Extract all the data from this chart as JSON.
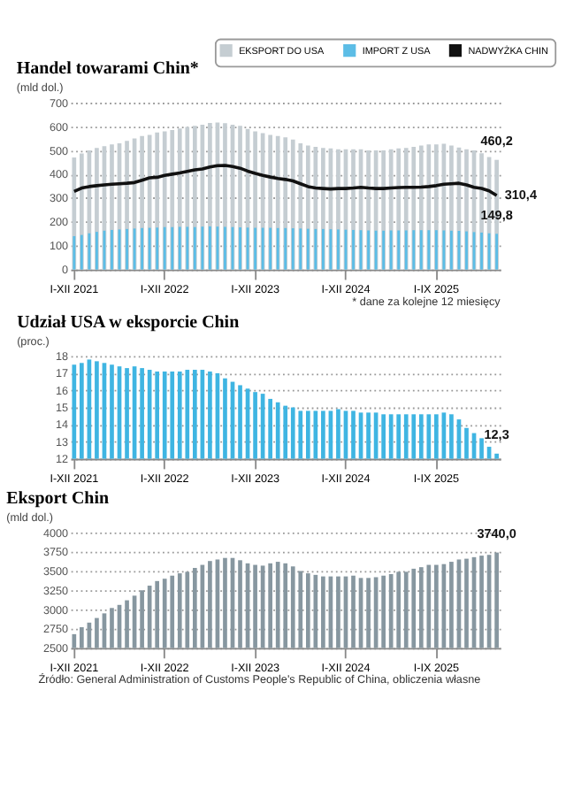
{
  "chart_data": [
    {
      "type": "bar",
      "title": "Handel towarami Chin*",
      "ylabel": "(mld dol.)",
      "legend": "top",
      "grid": "y",
      "categories": [
        "I-XII 2021",
        null,
        null,
        null,
        null,
        null,
        null,
        null,
        null,
        null,
        null,
        null,
        "I-XII 2022",
        null,
        null,
        null,
        null,
        null,
        null,
        null,
        null,
        null,
        null,
        null,
        "I-XII 2023",
        null,
        null,
        null,
        null,
        null,
        null,
        null,
        null,
        null,
        null,
        null,
        "I-XII 2024",
        null,
        null,
        null,
        null,
        null,
        null,
        null,
        null,
        null,
        null,
        null,
        "I-IX 2025",
        null,
        null,
        null,
        null,
        null,
        null,
        null,
        null
      ],
      "ylim": [
        0,
        700
      ],
      "yticks": [
        0,
        100,
        200,
        300,
        400,
        500,
        600,
        700
      ],
      "annotations": [
        "* dane za kolejne 12 miesięcy"
      ],
      "series": [
        {
          "name": "EKSPORT DO USA",
          "color": "#c5cdd2",
          "values": [
            470,
            487,
            500,
            510,
            518,
            525,
            530,
            540,
            550,
            560,
            565,
            575,
            580,
            585,
            592,
            598,
            603,
            608,
            615,
            617,
            614,
            608,
            603,
            590,
            580,
            572,
            565,
            560,
            555,
            545,
            530,
            520,
            515,
            510,
            508,
            505,
            505,
            505,
            505,
            500,
            500,
            500,
            505,
            508,
            510,
            515,
            520,
            525,
            525,
            528,
            520,
            512,
            505,
            500,
            488,
            472,
            460.2
          ],
          "value_labels": [
            null,
            null,
            null,
            null,
            null,
            null,
            null,
            null,
            null,
            null,
            null,
            null,
            null,
            null,
            null,
            null,
            null,
            null,
            null,
            null,
            null,
            null,
            null,
            null,
            null,
            null,
            null,
            null,
            null,
            null,
            null,
            null,
            null,
            null,
            null,
            null,
            null,
            null,
            null,
            null,
            null,
            null,
            null,
            null,
            null,
            null,
            null,
            null,
            null,
            null,
            null,
            null,
            null,
            null,
            null,
            null,
            "460,2"
          ]
        },
        {
          "name": "IMPORT Z USA",
          "color": "#5cbde6",
          "values": [
            140,
            145,
            152,
            158,
            163,
            166,
            168,
            170,
            172,
            174,
            175,
            176,
            178,
            178,
            179,
            179,
            178,
            180,
            181,
            180,
            179,
            178,
            177,
            176,
            175,
            175,
            175,
            174,
            174,
            173,
            172,
            171,
            170,
            170,
            169,
            168,
            167,
            166,
            165,
            164,
            163,
            163,
            164,
            164,
            164,
            165,
            165,
            165,
            165,
            164,
            163,
            162,
            160,
            157,
            155,
            152,
            149.8
          ],
          "value_labels": [
            null,
            null,
            null,
            null,
            null,
            null,
            null,
            null,
            null,
            null,
            null,
            null,
            null,
            null,
            null,
            null,
            null,
            null,
            null,
            null,
            null,
            null,
            null,
            null,
            null,
            null,
            null,
            null,
            null,
            null,
            null,
            null,
            null,
            null,
            null,
            null,
            null,
            null,
            null,
            null,
            null,
            null,
            null,
            null,
            null,
            null,
            null,
            null,
            null,
            null,
            null,
            null,
            null,
            null,
            null,
            null,
            "149,8"
          ]
        },
        {
          "name": "NADWYŻKA CHIN",
          "type": "line",
          "color": "#111111",
          "values": [
            328,
            342,
            348,
            352,
            355,
            358,
            360,
            362,
            365,
            375,
            385,
            387,
            395,
            400,
            405,
            412,
            418,
            422,
            430,
            436,
            437,
            432,
            425,
            413,
            403,
            395,
            388,
            382,
            378,
            372,
            360,
            348,
            342,
            340,
            338,
            340,
            340,
            342,
            345,
            342,
            340,
            340,
            342,
            344,
            345,
            345,
            346,
            348,
            352,
            358,
            360,
            362,
            355,
            345,
            340,
            330,
            310.4
          ],
          "value_labels": [
            null,
            null,
            null,
            null,
            null,
            null,
            null,
            null,
            null,
            null,
            null,
            null,
            null,
            null,
            null,
            null,
            null,
            null,
            null,
            null,
            null,
            null,
            null,
            null,
            null,
            null,
            null,
            null,
            null,
            null,
            null,
            null,
            null,
            null,
            null,
            null,
            null,
            null,
            null,
            null,
            null,
            null,
            null,
            null,
            null,
            null,
            null,
            null,
            null,
            null,
            null,
            null,
            null,
            null,
            null,
            null,
            "310,4"
          ]
        }
      ]
    },
    {
      "type": "bar",
      "title": "Udział USA w eksporcie Chin",
      "ylabel": "(proc.)",
      "grid": "y",
      "categories": [
        "I-XII 2021",
        null,
        null,
        null,
        null,
        null,
        null,
        null,
        null,
        null,
        null,
        null,
        "I-XII 2022",
        null,
        null,
        null,
        null,
        null,
        null,
        null,
        null,
        null,
        null,
        null,
        "I-XII 2023",
        null,
        null,
        null,
        null,
        null,
        null,
        null,
        null,
        null,
        null,
        null,
        "I-XII 2024",
        null,
        null,
        null,
        null,
        null,
        null,
        null,
        null,
        null,
        null,
        null,
        "I-IX 2025",
        null,
        null,
        null,
        null,
        null,
        null,
        null,
        null
      ],
      "ylim": [
        12,
        18
      ],
      "yticks": [
        12,
        13,
        14,
        15,
        16,
        17,
        18
      ],
      "series": [
        {
          "color": "#3fb5e2",
          "values": [
            17.5,
            17.6,
            17.8,
            17.7,
            17.6,
            17.5,
            17.4,
            17.3,
            17.4,
            17.3,
            17.2,
            17.1,
            17.1,
            17.1,
            17.1,
            17.2,
            17.2,
            17.2,
            17.1,
            17.0,
            16.7,
            16.5,
            16.3,
            16.1,
            15.9,
            15.8,
            15.5,
            15.3,
            15.1,
            15.0,
            14.8,
            14.8,
            14.8,
            14.8,
            14.8,
            14.9,
            14.8,
            14.8,
            14.7,
            14.7,
            14.7,
            14.6,
            14.6,
            14.6,
            14.6,
            14.6,
            14.6,
            14.6,
            14.6,
            14.7,
            14.6,
            14.3,
            13.8,
            13.5,
            13.2,
            12.7,
            12.3
          ],
          "value_labels": [
            null,
            null,
            null,
            null,
            null,
            null,
            null,
            null,
            null,
            null,
            null,
            null,
            null,
            null,
            null,
            null,
            null,
            null,
            null,
            null,
            null,
            null,
            null,
            null,
            null,
            null,
            null,
            null,
            null,
            null,
            null,
            null,
            null,
            null,
            null,
            null,
            null,
            null,
            null,
            null,
            null,
            null,
            null,
            null,
            null,
            null,
            null,
            null,
            null,
            null,
            null,
            null,
            null,
            null,
            null,
            null,
            "12,3"
          ]
        }
      ]
    },
    {
      "type": "bar",
      "title": "Eksport Chin",
      "ylabel": "(mld dol.)",
      "grid": "y",
      "categories": [
        "I-XII 2021",
        null,
        null,
        null,
        null,
        null,
        null,
        null,
        null,
        null,
        null,
        null,
        "I-XII 2022",
        null,
        null,
        null,
        null,
        null,
        null,
        null,
        null,
        null,
        null,
        null,
        "I-XII 2023",
        null,
        null,
        null,
        null,
        null,
        null,
        null,
        null,
        null,
        null,
        null,
        "I-XII 2024",
        null,
        null,
        null,
        null,
        null,
        null,
        null,
        null,
        null,
        null,
        null,
        "I-IX 2025",
        null,
        null,
        null,
        null,
        null,
        null,
        null,
        null
      ],
      "ylim": [
        2500,
        4000
      ],
      "yticks": [
        2500,
        2750,
        3000,
        3250,
        3500,
        3750,
        4000
      ],
      "annotations": [
        "Źródło: General Administration of Customs People's Republic of China, obliczenia własne"
      ],
      "series": [
        {
          "color": "#8797a0",
          "values": [
            2680,
            2770,
            2830,
            2890,
            2950,
            3020,
            3060,
            3120,
            3180,
            3250,
            3310,
            3370,
            3400,
            3440,
            3470,
            3490,
            3540,
            3580,
            3630,
            3650,
            3670,
            3670,
            3640,
            3600,
            3580,
            3570,
            3600,
            3620,
            3600,
            3560,
            3500,
            3470,
            3450,
            3430,
            3430,
            3430,
            3430,
            3440,
            3410,
            3410,
            3420,
            3440,
            3460,
            3490,
            3490,
            3530,
            3550,
            3580,
            3580,
            3590,
            3620,
            3650,
            3660,
            3680,
            3700,
            3710,
            3740.0
          ],
          "value_labels": [
            null,
            null,
            null,
            null,
            null,
            null,
            null,
            null,
            null,
            null,
            null,
            null,
            null,
            null,
            null,
            null,
            null,
            null,
            null,
            null,
            null,
            null,
            null,
            null,
            null,
            null,
            null,
            null,
            null,
            null,
            null,
            null,
            null,
            null,
            null,
            null,
            null,
            null,
            null,
            null,
            null,
            null,
            null,
            null,
            null,
            null,
            null,
            null,
            null,
            null,
            null,
            null,
            null,
            null,
            null,
            null,
            "3740,0"
          ]
        }
      ]
    }
  ]
}
